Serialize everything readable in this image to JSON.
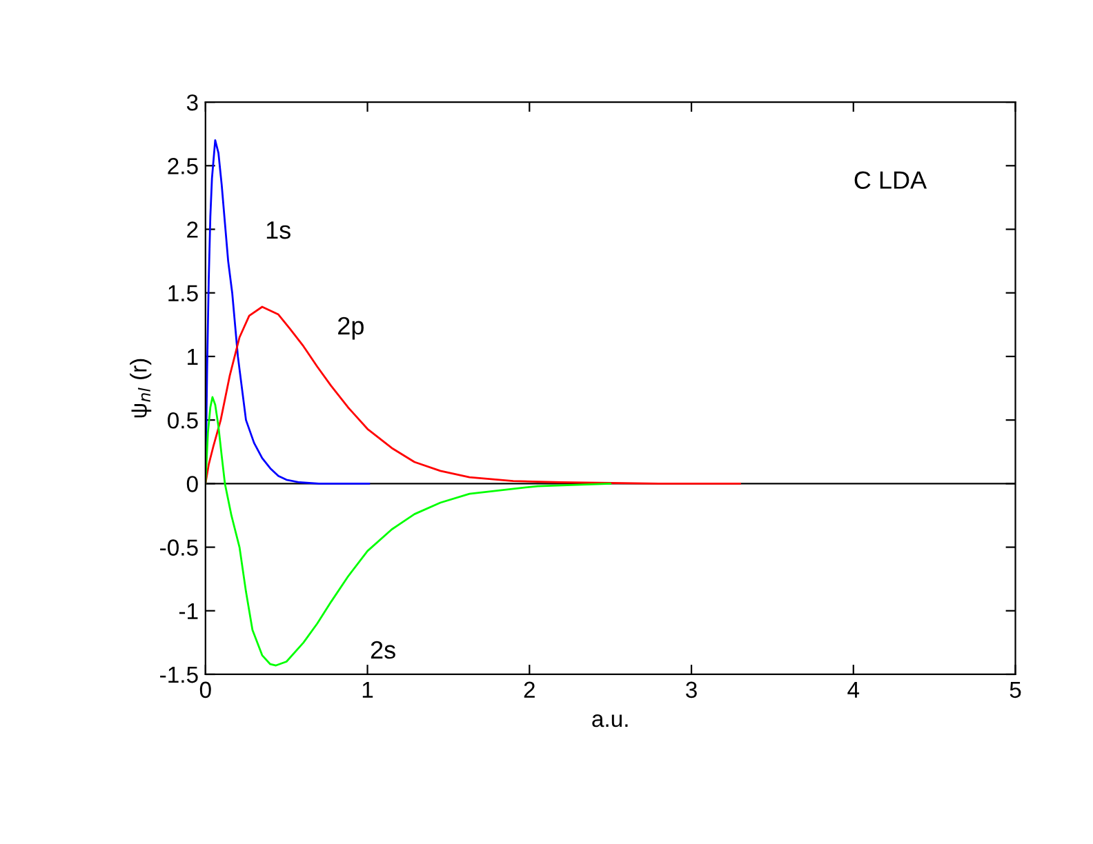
{
  "chart_data": {
    "type": "line",
    "xlabel": "a.u.",
    "ylabel": "ψ$_{nl}$ (r)",
    "xlim": [
      0,
      5
    ],
    "xticks": [
      0,
      1,
      2,
      3,
      4,
      5
    ],
    "ylim": [
      -1.5,
      3
    ],
    "yticks": [
      -1.5,
      -1,
      -0.5,
      0,
      0.5,
      1,
      1.5,
      2,
      2.5,
      3
    ],
    "grid": false,
    "legend": false,
    "marker": "none",
    "line_style": "solid",
    "series": [
      {
        "name": "1s",
        "color": "#0000ff",
        "x": [
          0,
          0.01,
          0.02,
          0.03,
          0.04,
          0.06,
          0.08,
          0.1,
          0.12,
          0.14,
          0.165,
          0.2,
          0.25,
          0.3,
          0.35,
          0.4,
          0.45,
          0.5,
          0.58,
          0.7,
          0.8,
          1.01
        ],
        "values": [
          0,
          0.9,
          1.6,
          2.1,
          2.4,
          2.7,
          2.6,
          2.35,
          2.05,
          1.75,
          1.5,
          1.0,
          0.5,
          0.32,
          0.2,
          0.12,
          0.06,
          0.03,
          0.01,
          0,
          0,
          0
        ]
      },
      {
        "name": "2p",
        "color": "#ff0000",
        "x": [
          0,
          0.02,
          0.05,
          0.094,
          0.15,
          0.21,
          0.27,
          0.35,
          0.45,
          0.52,
          0.605,
          0.69,
          0.775,
          0.88,
          1.0,
          1.15,
          1.29,
          1.45,
          1.63,
          1.9,
          2.2,
          2.8,
          3.3
        ],
        "values": [
          0,
          0.15,
          0.3,
          0.5,
          0.85,
          1.15,
          1.32,
          1.39,
          1.33,
          1.22,
          1.08,
          0.92,
          0.77,
          0.6,
          0.43,
          0.28,
          0.17,
          0.1,
          0.05,
          0.02,
          0.01,
          0,
          0
        ]
      },
      {
        "name": "2s",
        "color": "#00ff00",
        "x": [
          0,
          0.015,
          0.03,
          0.043,
          0.06,
          0.08,
          0.1,
          0.12,
          0.16,
          0.21,
          0.25,
          0.29,
          0.35,
          0.4,
          0.435,
          0.5,
          0.605,
          0.69,
          0.775,
          0.88,
          1.0,
          1.15,
          1.29,
          1.45,
          1.63,
          2.05,
          2.5
        ],
        "values": [
          0,
          0.4,
          0.6,
          0.68,
          0.62,
          0.45,
          0.22,
          0,
          -0.25,
          -0.5,
          -0.85,
          -1.15,
          -1.35,
          -1.42,
          -1.43,
          -1.4,
          -1.25,
          -1.1,
          -0.93,
          -0.73,
          -0.53,
          -0.36,
          -0.24,
          -0.15,
          -0.08,
          -0.02,
          0
        ]
      }
    ],
    "ref_lines": [
      {
        "axis": "y",
        "value": 0,
        "color": "#000000"
      }
    ],
    "annotations": [
      "C LDA"
    ]
  }
}
